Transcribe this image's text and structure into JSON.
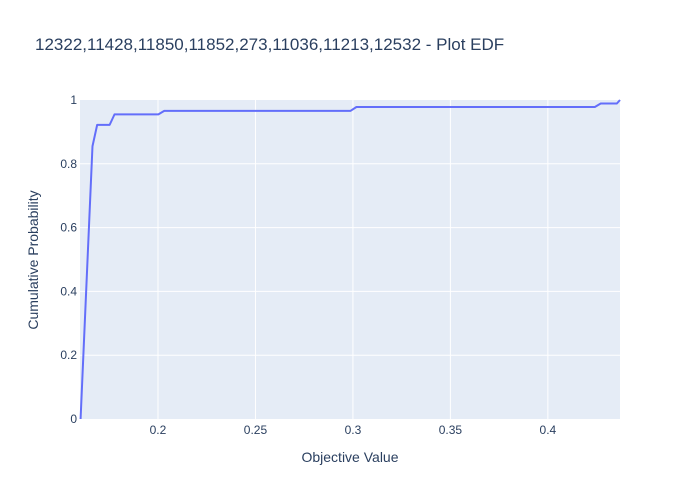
{
  "chart_data": {
    "type": "line",
    "title": "12322,11428,11850,11852,273,11036,11213,12532 - Plot EDF",
    "xlabel": "Objective Value",
    "ylabel": "Cumulative Probability",
    "xlim": [
      0.16,
      0.437
    ],
    "ylim": [
      0,
      1
    ],
    "x_ticks": [
      0.2,
      0.25,
      0.3,
      0.35,
      0.4
    ],
    "x_tick_labels": [
      "0.2",
      "0.25",
      "0.3",
      "0.35",
      "0.4"
    ],
    "y_ticks": [
      0,
      0.2,
      0.4,
      0.6,
      0.8,
      1
    ],
    "y_tick_labels": [
      "0",
      "0.2",
      "0.4",
      "0.6",
      "0.8",
      "1"
    ],
    "grid": true,
    "legend": "none",
    "series": [
      {
        "color": "#636efa",
        "x": [
          0.1603,
          0.1664,
          0.1688,
          0.1752,
          0.1777,
          0.2002,
          0.2032,
          0.2988,
          0.3018,
          0.4241,
          0.4271,
          0.4354,
          0.437
        ],
        "y": [
          0,
          0.855,
          0.922,
          0.922,
          0.955,
          0.955,
          0.966,
          0.966,
          0.978,
          0.978,
          0.989,
          0.989,
          1.0
        ]
      }
    ],
    "colors": {
      "plot_background": "#e5ecf6",
      "grid": "#ffffff",
      "text": "#2a3f5f",
      "line": "#636efa"
    }
  }
}
